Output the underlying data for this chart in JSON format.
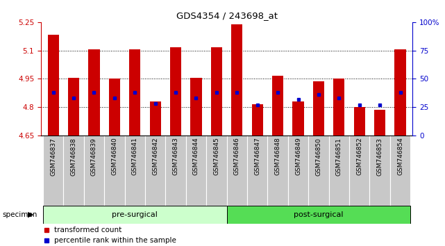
{
  "title": "GDS4354 / 243698_at",
  "samples": [
    "GSM746837",
    "GSM746838",
    "GSM746839",
    "GSM746840",
    "GSM746841",
    "GSM746842",
    "GSM746843",
    "GSM746844",
    "GSM746845",
    "GSM746846",
    "GSM746847",
    "GSM746848",
    "GSM746849",
    "GSM746850",
    "GSM746851",
    "GSM746852",
    "GSM746853",
    "GSM746854"
  ],
  "bar_values": [
    5.185,
    4.955,
    5.105,
    4.95,
    5.105,
    4.83,
    5.115,
    4.955,
    5.115,
    5.24,
    4.815,
    4.965,
    4.83,
    4.935,
    4.95,
    4.8,
    4.785,
    5.105
  ],
  "blue_pct": [
    38,
    33,
    38,
    33,
    38,
    28,
    38,
    33,
    38,
    38,
    27,
    38,
    32,
    36,
    33,
    27,
    27,
    38
  ],
  "ymin": 4.65,
  "ymax": 5.25,
  "pre_surgical_count": 9,
  "post_surgical_count": 9,
  "bar_color": "#cc0000",
  "blue_color": "#0000cc",
  "pre_surgical_color": "#ccffcc",
  "post_surgical_color": "#55dd55",
  "xlabel_area_color": "#cccccc",
  "right_yaxis_color": "#0000cc"
}
